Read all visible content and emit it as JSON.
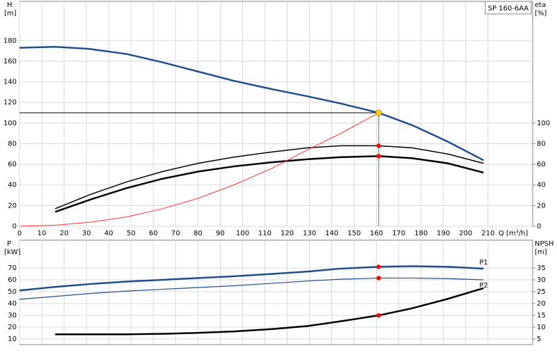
{
  "chart_data": [
    {
      "type": "line",
      "title": "SP 160-6AA",
      "y_label": "H",
      "y_unit": "[m]",
      "y2_label": "eta",
      "y2_unit": "[%]",
      "x_label": "Q [m³/h]",
      "xlim": [
        0,
        230
      ],
      "xticks": [
        0,
        10,
        20,
        30,
        40,
        50,
        60,
        70,
        80,
        90,
        100,
        110,
        120,
        130,
        140,
        150,
        160,
        170,
        180,
        190,
        200,
        210
      ],
      "ylim": [
        0,
        218
      ],
      "yticks": [
        0,
        20,
        40,
        60,
        80,
        100,
        120,
        140,
        160,
        180
      ],
      "y2lim": [
        0,
        218
      ],
      "y2ticks": [
        0,
        20,
        40,
        60,
        80,
        100
      ],
      "grid": true,
      "series": [
        {
          "color": "#1f4e8c",
          "width": 2.5,
          "x": [
            0,
            16,
            31,
            48,
            64,
            80,
            96,
            113,
            129,
            144,
            161,
            176,
            192,
            208
          ],
          "values": [
            173,
            174,
            172,
            167,
            159,
            150,
            141,
            133,
            126,
            119,
            110,
            98,
            82,
            64
          ]
        },
        {
          "color": "#000000",
          "width": 1.5,
          "axis": "y2",
          "x": [
            16,
            32,
            48,
            64,
            80,
            96,
            113,
            129,
            144,
            161,
            176,
            192,
            208
          ],
          "values": [
            17,
            31,
            43,
            53,
            61,
            67,
            72,
            76,
            78,
            78,
            76,
            70,
            61
          ]
        },
        {
          "color": "#000000",
          "width": 2.5,
          "axis": "y2",
          "x": [
            16,
            32,
            48,
            64,
            80,
            96,
            113,
            129,
            144,
            161,
            176,
            192,
            208
          ],
          "values": [
            14,
            26,
            37,
            46,
            53,
            58,
            62,
            65,
            67,
            68,
            66,
            61,
            52
          ]
        },
        {
          "color": "#ff3030",
          "width": 1,
          "x": [
            0,
            16,
            32,
            48,
            64,
            80,
            96,
            113,
            129,
            144,
            161
          ],
          "values": [
            0,
            1,
            4,
            9,
            17,
            27,
            40,
            56,
            74,
            90,
            110
          ]
        }
      ],
      "points": [
        {
          "x": 161,
          "y": 110,
          "color": "#ffd700"
        },
        {
          "x": 161,
          "y": 78,
          "color": "#ff0000"
        },
        {
          "x": 161,
          "y": 68,
          "color": "#ff0000"
        }
      ],
      "guide_point": 0
    },
    {
      "type": "line",
      "y_label": "P",
      "y_unit": "[kW]",
      "y2_label": "NPSH",
      "y2_unit": "[m]",
      "xlim": [
        0,
        230
      ],
      "ylim": [
        5.3,
        93.5
      ],
      "yticks": [
        10,
        20,
        30,
        40,
        50,
        60,
        70
      ],
      "y2lim": [
        2.65,
        46.8
      ],
      "y2ticks": [
        5,
        10,
        15,
        20,
        25,
        30,
        35
      ],
      "grid": true,
      "series": [
        {
          "name": "P1",
          "color": "#1f4e8c",
          "width": 2.5,
          "x": [
            0,
            16,
            32,
            48,
            64,
            80,
            96,
            113,
            129,
            144,
            161,
            176,
            192,
            208
          ],
          "values": [
            51,
            54,
            56.5,
            58.5,
            60,
            61.5,
            63,
            65,
            67,
            69.5,
            71,
            71.5,
            71,
            69.5
          ]
        },
        {
          "name": "P2",
          "color": "#1f4e8c",
          "width": 1.2,
          "x": [
            0,
            16,
            32,
            48,
            64,
            80,
            96,
            113,
            129,
            144,
            161,
            176,
            192,
            208
          ],
          "values": [
            43.5,
            46,
            48.5,
            50.5,
            52,
            53.5,
            55,
            57,
            59,
            60.5,
            61.5,
            61.5,
            61,
            60
          ]
        },
        {
          "color": "#000000",
          "width": 2.5,
          "axis": "y2",
          "x": [
            16,
            32,
            48,
            64,
            80,
            96,
            113,
            129,
            144,
            161,
            176,
            192,
            208
          ],
          "values": [
            7,
            7,
            7,
            7.2,
            7.6,
            8.2,
            9.2,
            10.5,
            12.5,
            15,
            18,
            22,
            26.5
          ]
        }
      ],
      "points": [
        {
          "x": 161,
          "y": 71,
          "color": "#ff0000"
        },
        {
          "x": 161,
          "y": 61.5,
          "color": "#ff0000"
        },
        {
          "x": 161,
          "y": 15,
          "color": "#ff0000",
          "axis": "y2"
        }
      ]
    }
  ]
}
